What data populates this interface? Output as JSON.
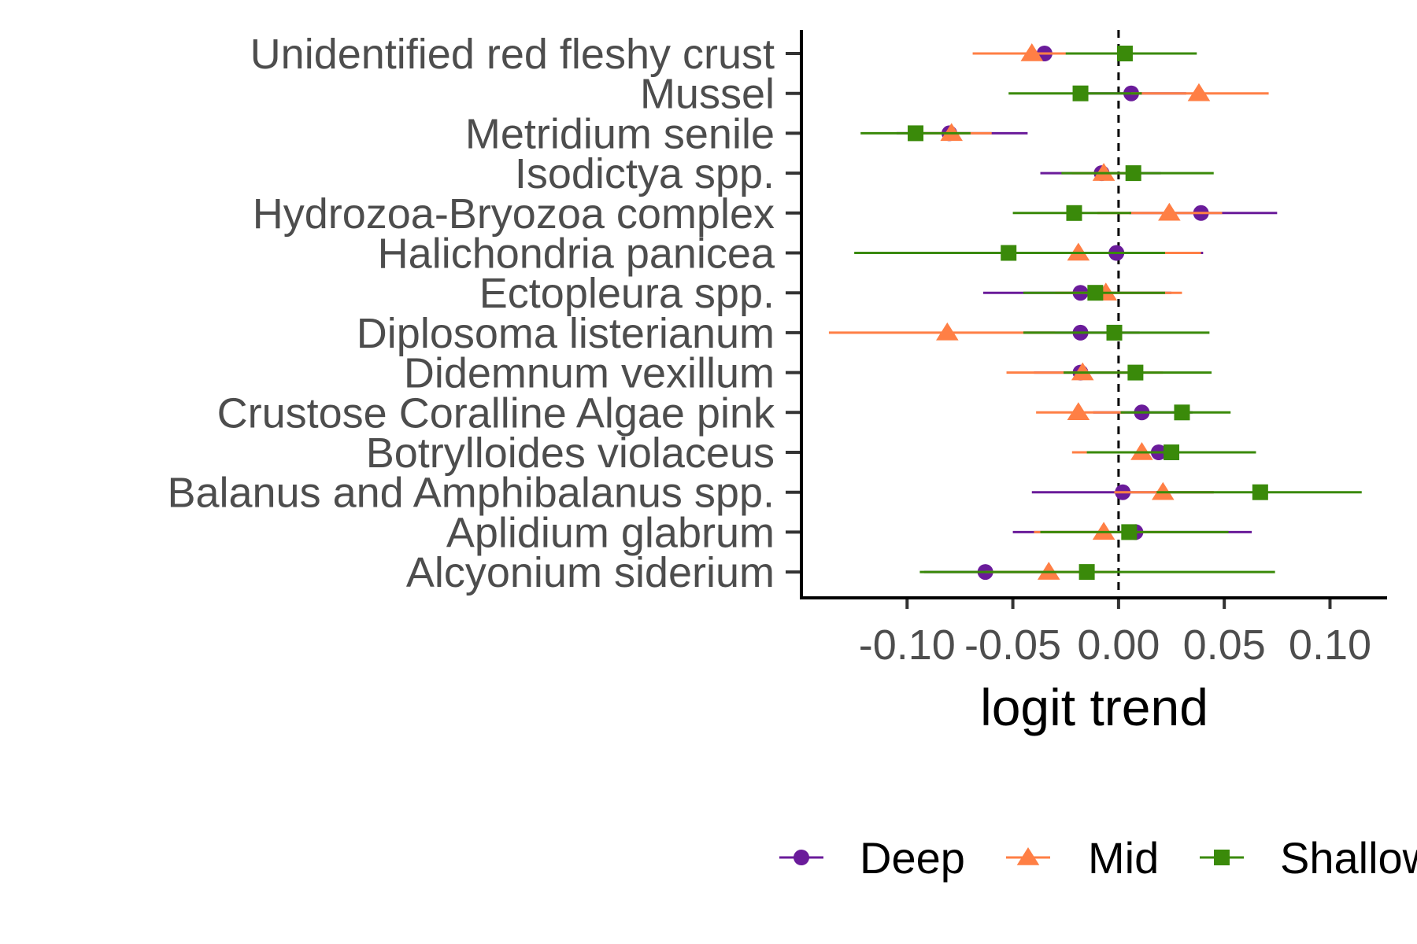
{
  "chart_data": {
    "type": "scatter",
    "subtype": "dot-and-whisker",
    "title": "",
    "xlabel": "logit trend",
    "ylabel": "",
    "xlim": [
      -0.15,
      0.127
    ],
    "xticks": [
      -0.1,
      -0.05,
      0.0,
      0.05,
      0.1
    ],
    "xtick_labels": [
      "-0.10",
      "-0.05",
      "0.00",
      "0.05",
      "0.10"
    ],
    "reference_line": {
      "x": 0,
      "style": "dashed"
    },
    "grid": false,
    "legend": {
      "position": "bottom"
    },
    "categories": [
      "Unidentified red fleshy crust",
      "Mussel",
      "Metridium senile",
      "Isodictya spp.",
      "Hydrozoa-Bryozoa complex",
      "Halichondria panicea",
      "Ectopleura spp.",
      "Diplosoma listerianum",
      "Didemnum vexillum",
      "Crustose Coralline Algae pink",
      "Botrylloides violaceus",
      "Balanus and Amphibalanus spp.",
      "Aplidium glabrum",
      "Alcyonium siderium"
    ],
    "series": [
      {
        "name": "Deep",
        "color": "#6a1b9a",
        "marker": "circle",
        "estimate": [
          -0.035,
          0.006,
          -0.08,
          -0.008,
          0.039,
          -0.001,
          -0.018,
          -0.018,
          -0.018,
          0.011,
          0.019,
          0.002,
          0.008,
          -0.063
        ],
        "lower": [
          -0.055,
          -0.02,
          -0.105,
          -0.037,
          0.005,
          -0.03,
          -0.064,
          -0.045,
          -0.04,
          -0.012,
          -0.005,
          -0.041,
          -0.05,
          -0.092
        ],
        "upper": [
          -0.015,
          0.032,
          -0.043,
          0.02,
          0.075,
          0.04,
          0.025,
          0.01,
          0.005,
          0.035,
          0.045,
          0.045,
          0.063,
          -0.035
        ]
      },
      {
        "name": "Mid",
        "color": "#ff7f45",
        "marker": "triangle",
        "estimate": [
          -0.041,
          0.038,
          -0.079,
          -0.007,
          0.024,
          -0.019,
          -0.006,
          -0.081,
          -0.017,
          -0.019,
          0.011,
          0.021,
          -0.007,
          -0.033
        ],
        "lower": [
          -0.069,
          0.006,
          -0.098,
          -0.022,
          -0.01,
          -0.052,
          -0.03,
          -0.137,
          -0.053,
          -0.039,
          -0.022,
          -0.002,
          -0.04,
          -0.063
        ],
        "upper": [
          -0.012,
          0.071,
          -0.06,
          0.009,
          0.049,
          0.039,
          0.03,
          -0.03,
          0.021,
          0.003,
          0.044,
          0.045,
          0.024,
          -0.002
        ]
      },
      {
        "name": "Shallow",
        "color": "#3a8a0a",
        "marker": "square",
        "estimate": [
          0.003,
          -0.018,
          -0.096,
          0.007,
          -0.021,
          -0.052,
          -0.011,
          -0.002,
          0.008,
          0.03,
          0.025,
          0.067,
          0.005,
          -0.015
        ],
        "lower": [
          -0.025,
          -0.052,
          -0.122,
          -0.027,
          -0.05,
          -0.125,
          -0.045,
          -0.045,
          -0.026,
          0.001,
          -0.015,
          0.018,
          -0.037,
          -0.094
        ],
        "upper": [
          0.037,
          0.011,
          -0.07,
          0.045,
          0.006,
          0.022,
          0.022,
          0.043,
          0.044,
          0.053,
          0.065,
          0.115,
          0.052,
          0.074
        ]
      }
    ]
  }
}
